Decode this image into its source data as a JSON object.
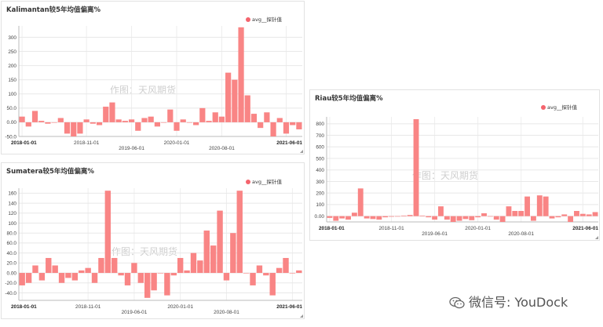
{
  "chart_data": [
    {
      "type": "bar",
      "title": "Kalimantan较5年均值偏离%",
      "legend": "avg__探针值",
      "watermark": "作图：天风期货",
      "bar_color": "#f98585",
      "legend_color": "#f4646d",
      "ylim": [
        -50,
        340
      ],
      "yticks": [
        "300",
        "250",
        "200",
        "150",
        "100",
        "50.0",
        "0.00",
        "-50.0"
      ],
      "ytick_values": [
        300,
        250,
        200,
        150,
        100,
        50,
        0,
        -50
      ],
      "xticks": [
        {
          "label": "2018-01-01",
          "index": 0,
          "row": 0,
          "bold": true
        },
        {
          "label": "2018-11-01",
          "index": 10,
          "row": 0,
          "bold": false
        },
        {
          "label": "2019-06-01",
          "index": 17,
          "row": 1,
          "bold": false
        },
        {
          "label": "2020-01-01",
          "index": 24,
          "row": 0,
          "bold": false
        },
        {
          "label": "2020-08-01",
          "index": 31,
          "row": 1,
          "bold": false
        },
        {
          "label": "2021-06-01",
          "index": 41,
          "row": 0,
          "bold": true
        }
      ],
      "values": [
        20,
        -15,
        40,
        5,
        -5,
        0,
        15,
        -40,
        -50,
        -40,
        10,
        -5,
        -10,
        55,
        70,
        10,
        5,
        10,
        -30,
        15,
        20,
        -15,
        0,
        45,
        -30,
        10,
        0,
        -10,
        50,
        5,
        35,
        20,
        175,
        150,
        335,
        95,
        30,
        -20,
        35,
        -50,
        15,
        -40,
        -10,
        -25
      ]
    },
    {
      "type": "bar",
      "title": "Sumatera较5年均值偏离%",
      "legend": "avg__探针值",
      "watermark": "作图：天风期货",
      "bar_color": "#f98585",
      "legend_color": "#f4646d",
      "ylim": [
        -55,
        170
      ],
      "yticks": [
        "160",
        "140",
        "120",
        "100",
        "80.0",
        "60.0",
        "40.0",
        "20.0",
        "0.00",
        "-20.0",
        "-40.0"
      ],
      "ytick_values": [
        160,
        140,
        120,
        100,
        80,
        60,
        40,
        20,
        0,
        -20,
        -40
      ],
      "xticks": [
        {
          "label": "2018-01-01",
          "index": 0,
          "row": 0,
          "bold": true
        },
        {
          "label": "2018-11-01",
          "index": 10,
          "row": 0,
          "bold": false
        },
        {
          "label": "2019-06-01",
          "index": 17,
          "row": 1,
          "bold": false
        },
        {
          "label": "2020-01-01",
          "index": 24,
          "row": 0,
          "bold": false
        },
        {
          "label": "2020-08-01",
          "index": 31,
          "row": 1,
          "bold": false
        },
        {
          "label": "2021-06-01",
          "index": 41,
          "row": 0,
          "bold": true
        }
      ],
      "values": [
        -25,
        -20,
        15,
        -15,
        30,
        15,
        -20,
        -10,
        -15,
        5,
        10,
        -20,
        30,
        165,
        30,
        -5,
        -25,
        20,
        -20,
        -50,
        -35,
        0,
        -45,
        -5,
        30,
        5,
        40,
        25,
        85,
        55,
        125,
        -15,
        80,
        165,
        0,
        -25,
        15,
        -5,
        -45,
        10,
        30,
        0,
        5
      ]
    },
    {
      "type": "bar",
      "title": "Riau较5年均值偏离%",
      "legend": "avg__探针值",
      "watermark": "作图：天风期货",
      "bar_color": "#f98585",
      "legend_color": "#f4646d",
      "ylim": [
        -50,
        860
      ],
      "yticks": [
        "800",
        "700",
        "600",
        "500",
        "400",
        "300",
        "200",
        "100",
        "0.00"
      ],
      "ytick_values": [
        800,
        700,
        600,
        500,
        400,
        300,
        200,
        100,
        0
      ],
      "xticks": [
        {
          "label": "2018-01-01",
          "index": 0,
          "row": 0,
          "bold": true
        },
        {
          "label": "2018-11-01",
          "index": 10,
          "row": 0,
          "bold": false
        },
        {
          "label": "2019-06-01",
          "index": 17,
          "row": 1,
          "bold": false
        },
        {
          "label": "2020-01-01",
          "index": 24,
          "row": 0,
          "bold": false
        },
        {
          "label": "2020-08-01",
          "index": 31,
          "row": 1,
          "bold": false
        },
        {
          "label": "2021-06-01",
          "index": 41,
          "row": 0,
          "bold": true
        }
      ],
      "values": [
        -15,
        -40,
        -20,
        -30,
        30,
        240,
        -20,
        -25,
        -30,
        -10,
        -5,
        0,
        5,
        10,
        840,
        5,
        -10,
        -30,
        85,
        -30,
        -50,
        -40,
        -25,
        -35,
        -10,
        25,
        0,
        -30,
        -50,
        85,
        45,
        45,
        170,
        -40,
        180,
        170,
        -20,
        -10,
        15,
        -50,
        45,
        20,
        15,
        35
      ]
    }
  ],
  "branding": {
    "wechat_text": "微信号: YouDock",
    "wechat_icon": "wechat-icon"
  }
}
